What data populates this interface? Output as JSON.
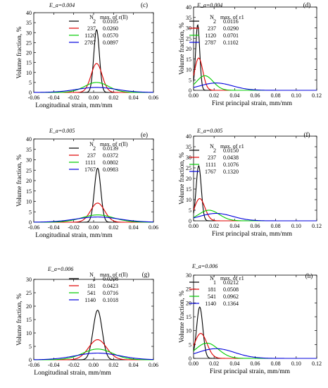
{
  "chart_data": [
    {
      "id": "c",
      "type": "line",
      "panel_label": "(c)",
      "strain_level": "E_a=0.004",
      "xlabel": "Longitudinal strain, mm/mm",
      "ylabel": "Volume fraction, %",
      "xlim": [
        -0.06,
        0.06
      ],
      "ylim": [
        0,
        40
      ],
      "xticks": [
        "-0.06",
        "-0.04",
        "-0.02",
        "0.00",
        "0.02",
        "0.04",
        "0.06"
      ],
      "yticks": [
        "0",
        "5",
        "10",
        "15",
        "20",
        "25",
        "30",
        "35",
        "40"
      ],
      "legend_header": [
        "N",
        "max. of ε(ll)"
      ],
      "series": [
        {
          "name": "2",
          "max": "0.0105",
          "color": "#000000",
          "peak_x": 0.003,
          "peak_y": 31.5,
          "sigma": 0.0028
        },
        {
          "name": "237",
          "max": "0.0260",
          "color": "#e00000",
          "peak_x": 0.003,
          "peak_y": 14.5,
          "sigma": 0.0055
        },
        {
          "name": "1120",
          "max": "0.0570",
          "color": "#00cc00",
          "peak_x": 0.003,
          "peak_y": 5.0,
          "sigma": 0.012
        },
        {
          "name": "2787",
          "max": "0.0897",
          "color": "#0000dd",
          "peak_x": 0.003,
          "peak_y": 2.5,
          "sigma": 0.02
        }
      ]
    },
    {
      "id": "d",
      "type": "line",
      "panel_label": "(d)",
      "strain_level": "E_a=0.004",
      "xlabel": "First principal strain, mm/mm",
      "ylabel": "Volume fraction, %",
      "xlim": [
        0,
        0.12
      ],
      "ylim": [
        0,
        40
      ],
      "xticks": [
        "0.00",
        "0.02",
        "0.04",
        "0.06",
        "0.08",
        "0.10",
        "0.12"
      ],
      "yticks": [
        "0",
        "5",
        "10",
        "15",
        "20",
        "25",
        "30",
        "35",
        "40"
      ],
      "legend_header": [
        "N",
        "max. of ε1"
      ],
      "series": [
        {
          "name": "2",
          "max": "0.0116",
          "color": "#000000",
          "peak_x": 0.004,
          "peak_y": 31.5,
          "sigma": 0.002
        },
        {
          "name": "237",
          "max": "0.0290",
          "color": "#e00000",
          "peak_x": 0.005,
          "peak_y": 15.5,
          "sigma": 0.004
        },
        {
          "name": "1120",
          "max": "0.0701",
          "color": "#00cc00",
          "peak_x": 0.011,
          "peak_y": 7.0,
          "sigma": 0.008
        },
        {
          "name": "2787",
          "max": "0.1102",
          "color": "#0000dd",
          "peak_x": 0.022,
          "peak_y": 3.5,
          "sigma": 0.016
        }
      ]
    },
    {
      "id": "e",
      "type": "line",
      "panel_label": "(e)",
      "strain_level": "E_a=0.005",
      "xlabel": "Longitudinal strain, mm/mm",
      "ylabel": "Volume fraction, %",
      "xlim": [
        -0.06,
        0.06
      ],
      "ylim": [
        0,
        40
      ],
      "xticks": [
        "-0.06",
        "-0.04",
        "-0.02",
        "0.00",
        "0.02",
        "0.04",
        "0.06"
      ],
      "yticks": [
        "0",
        "5",
        "10",
        "15",
        "20",
        "25",
        "30",
        "35",
        "40"
      ],
      "legend_header": [
        "N",
        "max. of ε(ll)"
      ],
      "series": [
        {
          "name": "2",
          "max": "0.0139",
          "color": "#000000",
          "peak_x": 0.004,
          "peak_y": 26.0,
          "sigma": 0.0032
        },
        {
          "name": "237",
          "max": "0.0372",
          "color": "#e00000",
          "peak_x": 0.004,
          "peak_y": 9.2,
          "sigma": 0.007
        },
        {
          "name": "1111",
          "max": "0.0802",
          "color": "#00cc00",
          "peak_x": 0.004,
          "peak_y": 3.5,
          "sigma": 0.016
        },
        {
          "name": "1767",
          "max": "0.0983",
          "color": "#0000dd",
          "peak_x": 0.004,
          "peak_y": 2.5,
          "sigma": 0.022
        }
      ]
    },
    {
      "id": "f",
      "type": "line",
      "panel_label": "(f)",
      "strain_level": "E_a=0.005",
      "xlabel": "First principal strain, mm/mm",
      "ylabel": "Volume fraction, %",
      "xlim": [
        0,
        0.12
      ],
      "ylim": [
        0,
        40
      ],
      "xticks": [
        "0.00",
        "0.02",
        "0.04",
        "0.06",
        "0.08",
        "0.10",
        "0.12"
      ],
      "yticks": [
        "0",
        "5",
        "10",
        "15",
        "20",
        "25",
        "30",
        "35",
        "40"
      ],
      "legend_header": [
        "N",
        "max. of ε1"
      ],
      "series": [
        {
          "name": "2",
          "max": "0.0150",
          "color": "#000000",
          "peak_x": 0.005,
          "peak_y": 26.0,
          "sigma": 0.0025
        },
        {
          "name": "237",
          "max": "0.0438",
          "color": "#e00000",
          "peak_x": 0.006,
          "peak_y": 10.5,
          "sigma": 0.005
        },
        {
          "name": "1111",
          "max": "0.1076",
          "color": "#00cc00",
          "peak_x": 0.015,
          "peak_y": 5.0,
          "sigma": 0.01
        },
        {
          "name": "1767",
          "max": "0.1320",
          "color": "#0000dd",
          "peak_x": 0.022,
          "peak_y": 3.5,
          "sigma": 0.016
        }
      ]
    },
    {
      "id": "g",
      "type": "line",
      "panel_label": "(g)",
      "strain_level": "E_a=0.006",
      "xlabel": "Longitudinal strain, mm/mm",
      "ylabel": "Volume fraction, %",
      "xlim": [
        -0.06,
        0.06
      ],
      "ylim": [
        0,
        30
      ],
      "xticks": [
        "-0.06",
        "-0.04",
        "-0.02",
        "0.00",
        "0.02",
        "0.04",
        "0.06"
      ],
      "yticks": [
        "0",
        "5",
        "10",
        "15",
        "20",
        "25",
        "30"
      ],
      "legend_header": [
        "N",
        "max. of ε(ll)"
      ],
      "series": [
        {
          "name": "1",
          "max": "0.0208",
          "color": "#000000",
          "peak_x": 0.004,
          "peak_y": 18.5,
          "sigma": 0.0045
        },
        {
          "name": "181",
          "max": "0.0423",
          "color": "#e00000",
          "peak_x": 0.004,
          "peak_y": 7.5,
          "sigma": 0.009
        },
        {
          "name": "541",
          "max": "0.0716",
          "color": "#00cc00",
          "peak_x": 0.004,
          "peak_y": 4.0,
          "sigma": 0.015
        },
        {
          "name": "1140",
          "max": "0.1018",
          "color": "#0000dd",
          "peak_x": 0.004,
          "peak_y": 2.5,
          "sigma": 0.022
        }
      ]
    },
    {
      "id": "h",
      "type": "line",
      "panel_label": "(h)",
      "strain_level": "E_a=0.006",
      "xlabel": "First principal strain, mm/mm",
      "ylabel": "Volume fraction, %",
      "xlim": [
        0,
        0.12
      ],
      "ylim": [
        0,
        30
      ],
      "xticks": [
        "0.00",
        "0.02",
        "0.04",
        "0.06",
        "0.08",
        "0.10",
        "0.12"
      ],
      "yticks": [
        "0",
        "5",
        "10",
        "15",
        "20",
        "25",
        "30"
      ],
      "legend_header": [
        "N",
        "max. of ε1"
      ],
      "series": [
        {
          "name": "1",
          "max": "0.0212",
          "color": "#000000",
          "peak_x": 0.006,
          "peak_y": 18.5,
          "sigma": 0.003
        },
        {
          "name": "181",
          "max": "0.0508",
          "color": "#e00000",
          "peak_x": 0.007,
          "peak_y": 9.0,
          "sigma": 0.006
        },
        {
          "name": "541",
          "max": "0.0962",
          "color": "#00cc00",
          "peak_x": 0.013,
          "peak_y": 5.5,
          "sigma": 0.011
        },
        {
          "name": "1140",
          "max": "0.1364",
          "color": "#0000dd",
          "peak_x": 0.022,
          "peak_y": 3.5,
          "sigma": 0.018
        }
      ]
    }
  ]
}
